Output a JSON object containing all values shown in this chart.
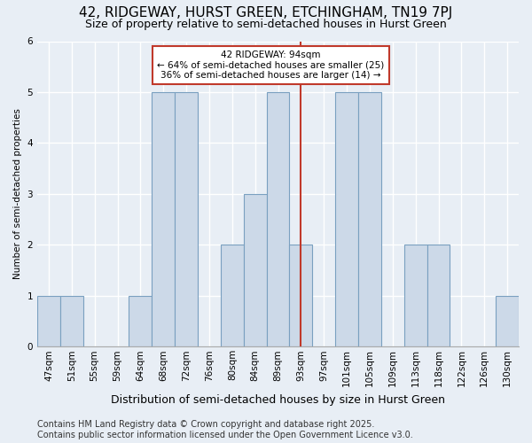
{
  "title": "42, RIDGEWAY, HURST GREEN, ETCHINGHAM, TN19 7PJ",
  "subtitle": "Size of property relative to semi-detached houses in Hurst Green",
  "xlabel": "Distribution of semi-detached houses by size in Hurst Green",
  "ylabel": "Number of semi-detached properties",
  "categories": [
    "47sqm",
    "51sqm",
    "55sqm",
    "59sqm",
    "64sqm",
    "68sqm",
    "72sqm",
    "76sqm",
    "80sqm",
    "84sqm",
    "89sqm",
    "93sqm",
    "97sqm",
    "101sqm",
    "105sqm",
    "109sqm",
    "113sqm",
    "118sqm",
    "122sqm",
    "126sqm",
    "130sqm"
  ],
  "values": [
    1,
    1,
    0,
    0,
    1,
    5,
    5,
    0,
    2,
    3,
    5,
    2,
    0,
    5,
    5,
    0,
    2,
    2,
    0,
    0,
    1
  ],
  "bar_color": "#ccd9e8",
  "bar_edge_color": "#7aa0c0",
  "subject_line_x": "93sqm",
  "subject_line_color": "#c0392b",
  "annotation_title": "42 RIDGEWAY: 94sqm",
  "annotation_line1": "← 64% of semi-detached houses are smaller (25)",
  "annotation_line2": "36% of semi-detached houses are larger (14) →",
  "annotation_box_color": "#c0392b",
  "ylim": [
    0,
    6
  ],
  "yticks": [
    0,
    1,
    2,
    3,
    4,
    5,
    6
  ],
  "footer": "Contains HM Land Registry data © Crown copyright and database right 2025.\nContains public sector information licensed under the Open Government Licence v3.0.",
  "bg_color": "#e8eef5",
  "grid_color": "#ffffff",
  "title_fontsize": 11,
  "subtitle_fontsize": 9,
  "footer_fontsize": 7,
  "annot_fontsize": 7.5,
  "ylabel_fontsize": 7.5,
  "xlabel_fontsize": 9,
  "tick_fontsize": 7.5
}
